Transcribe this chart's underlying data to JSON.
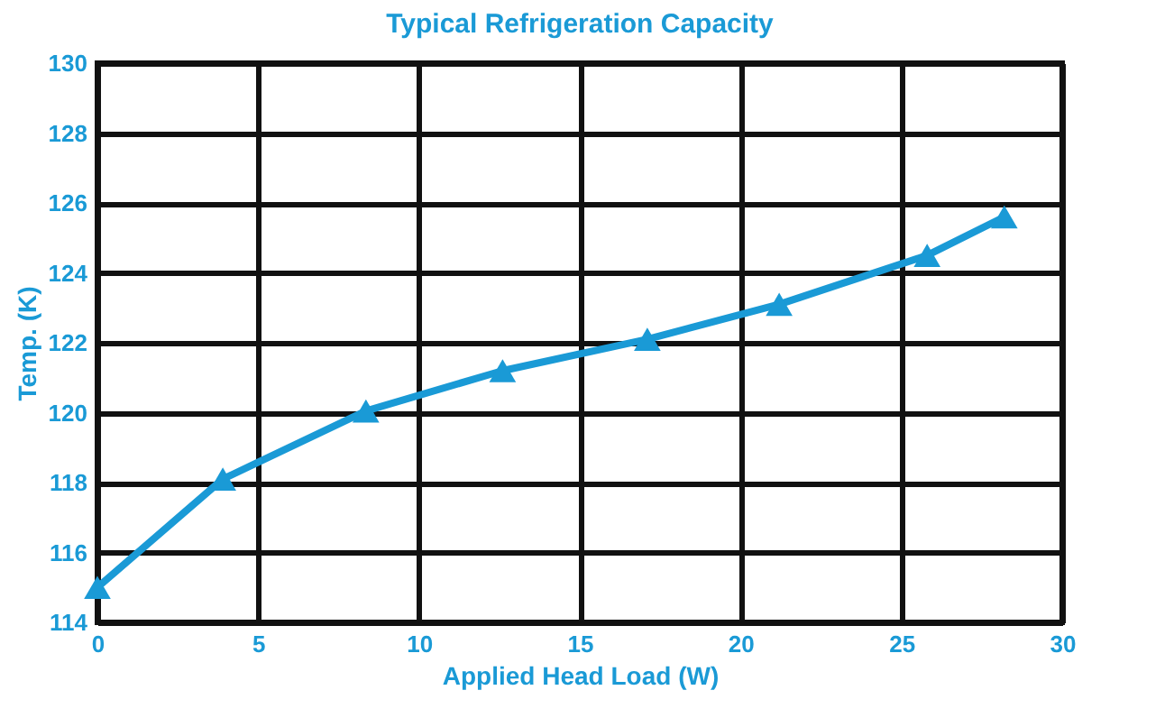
{
  "chart_data": {
    "type": "line",
    "title": "Typical Refrigeration Capacity",
    "xlabel": "Applied Head Load (W)",
    "ylabel": "Temp. (K)",
    "x": [
      0,
      3.9,
      8.35,
      12.6,
      17.1,
      21.2,
      25.8,
      28.2
    ],
    "series": [
      {
        "color": "#1a9ad6",
        "values": [
          115,
          118.1,
          120.05,
          121.2,
          122.1,
          123.1,
          124.5,
          125.6
        ]
      }
    ],
    "xlim": [
      0,
      30
    ],
    "xticks": [
      0,
      5,
      10,
      15,
      20,
      25,
      30
    ],
    "ylim": [
      114,
      130
    ],
    "yticks": [
      114,
      116,
      118,
      120,
      122,
      124,
      126,
      128,
      130
    ],
    "grid": true,
    "marker": "triangle",
    "line_style": "solid",
    "legend": false
  }
}
